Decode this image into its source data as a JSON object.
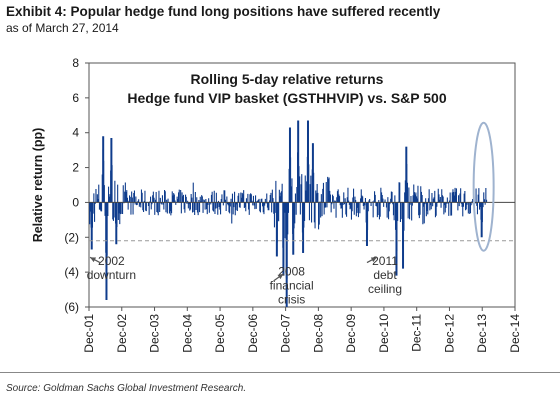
{
  "header": {
    "title": "Exhibit 4: Popular hedge fund long positions have suffered recently",
    "subtitle": "as of March 27, 2014"
  },
  "footer": {
    "source": "Source: Goldman Sachs Global Investment Research."
  },
  "chart_data": {
    "type": "bar",
    "title": "Rolling 5-day relative returns",
    "subtitle": "Hedge fund VIP basket (GSTHHVIP) vs. S&P 500",
    "xlabel": "",
    "ylabel": "Relative return (pp)",
    "ylim": [
      -6,
      8
    ],
    "yticks": [
      8,
      6,
      4,
      2,
      0,
      -2,
      -4,
      -6
    ],
    "ytick_labels": [
      "8",
      "6",
      "4",
      "2",
      "0",
      "(2)",
      "(4)",
      "(6)"
    ],
    "xlim": [
      2001.917,
      2014.917
    ],
    "xticks": [
      2001.917,
      2002.917,
      2003.917,
      2004.917,
      2005.917,
      2006.917,
      2007.917,
      2008.917,
      2009.917,
      2010.917,
      2011.917,
      2012.917,
      2013.917,
      2014.917
    ],
    "xtick_labels": [
      "Dec-01",
      "Dec-02",
      "Dec-03",
      "Dec-04",
      "Dec-05",
      "Dec-06",
      "Dec-07",
      "Dec-08",
      "Dec-09",
      "Dec-10",
      "Dec-11",
      "Dec-12",
      "Dec-13",
      "Dec-14"
    ],
    "reference_line": {
      "y": -2.2,
      "style": "dashed"
    },
    "series_color": "#0f3c8c",
    "highlight": {
      "x": 2013.96,
      "shape": "ellipse",
      "color": "#9fb3cf"
    },
    "annotations": [
      {
        "lines": [
          "2002",
          "downturn"
        ],
        "x": 2002.6,
        "y": -3.6
      },
      {
        "lines": [
          "2008",
          "financial",
          "crisis"
        ],
        "x": 2008.1,
        "y": -4.2
      },
      {
        "lines": [
          "2011",
          "debt",
          "ceiling"
        ],
        "x": 2010.95,
        "y": -3.6
      }
    ],
    "notable_points": [
      {
        "x": 2002.0,
        "y": -2.7
      },
      {
        "x": 2002.45,
        "y": -5.6
      },
      {
        "x": 2002.35,
        "y": 3.8
      },
      {
        "x": 2002.6,
        "y": 3.7
      },
      {
        "x": 2002.75,
        "y": -2.4
      },
      {
        "x": 2007.65,
        "y": -3.1
      },
      {
        "x": 2007.85,
        "y": -4.2
      },
      {
        "x": 2007.95,
        "y": -6.0
      },
      {
        "x": 2008.05,
        "y": 4.3
      },
      {
        "x": 2008.15,
        "y": -3.0
      },
      {
        "x": 2008.3,
        "y": 4.7
      },
      {
        "x": 2008.45,
        "y": -2.9
      },
      {
        "x": 2008.6,
        "y": 4.7
      },
      {
        "x": 2008.75,
        "y": 3.4
      },
      {
        "x": 2010.4,
        "y": -2.5
      },
      {
        "x": 2011.3,
        "y": -4.2
      },
      {
        "x": 2011.5,
        "y": -3.8
      },
      {
        "x": 2011.6,
        "y": 3.2
      },
      {
        "x": 2013.9,
        "y": -2.0
      }
    ]
  }
}
